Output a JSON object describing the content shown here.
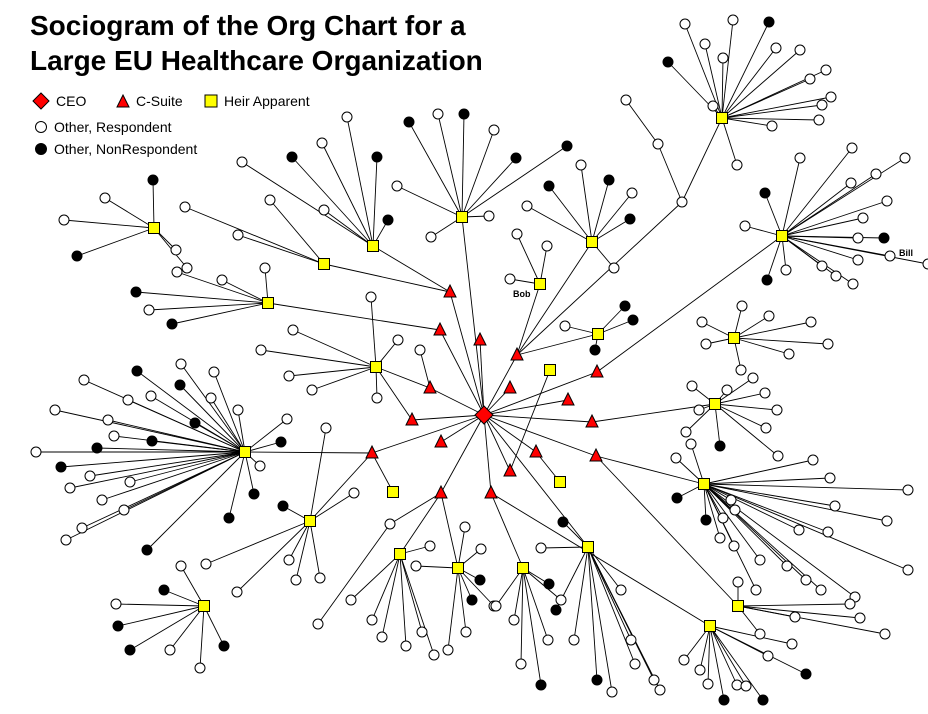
{
  "title": {
    "line1": "Sociogram of the Org Chart for a",
    "line2": "Large EU Healthcare Organization"
  },
  "legend": {
    "ceo": "CEO",
    "csuite": "C-Suite",
    "heir": "Heir Apparent",
    "respondent": "Other, Respondent",
    "nonrespondent": "Other, NonRespondent"
  },
  "colors": {
    "ceo": "#ff0000",
    "csuite": "#ff0000",
    "heir": "#ffff00",
    "respondent": "#ffffff",
    "nonrespondent": "#000000",
    "stroke": "#000000"
  },
  "labels": {
    "bob": "Bob",
    "bill": "Bill"
  }
}
